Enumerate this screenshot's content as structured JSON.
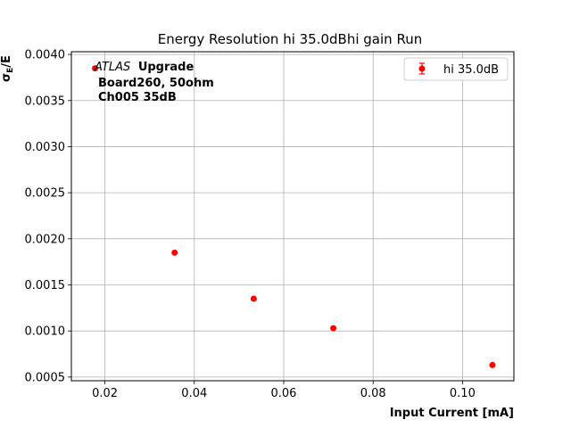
{
  "chart_data": {
    "type": "scatter",
    "title": "Energy Resolution hi 35.0dBhi gain Run",
    "xlabel": "Input Current [mA]",
    "ylabel": "σ_E/E",
    "xlim": [
      0.0125,
      0.1115
    ],
    "ylim": [
      0.00046,
      0.00403
    ],
    "xticks": [
      0.02,
      0.04,
      0.06,
      0.08,
      0.1
    ],
    "xtick_labels": [
      "0.02",
      "0.04",
      "0.06",
      "0.08",
      "0.10"
    ],
    "yticks": [
      0.0005,
      0.001,
      0.0015,
      0.002,
      0.0025,
      0.003,
      0.0035,
      0.004
    ],
    "ytick_labels": [
      "0.0005",
      "0.0010",
      "0.0015",
      "0.0020",
      "0.0025",
      "0.0030",
      "0.0035",
      "0.0040"
    ],
    "grid": true,
    "legend_position": "top-right",
    "series": [
      {
        "name": "hi 35.0dB",
        "color": "#ff0000",
        "x": [
          0.0178,
          0.0356,
          0.0533,
          0.0711,
          0.1067
        ],
        "y": [
          0.00385,
          0.00185,
          0.00135,
          0.00103,
          0.00063
        ]
      }
    ],
    "annotation": {
      "atlas": "ATLAS",
      "upgrade": "Upgrade",
      "line2": "Board260, 50ohm",
      "line3": "Ch005 35dB"
    }
  }
}
